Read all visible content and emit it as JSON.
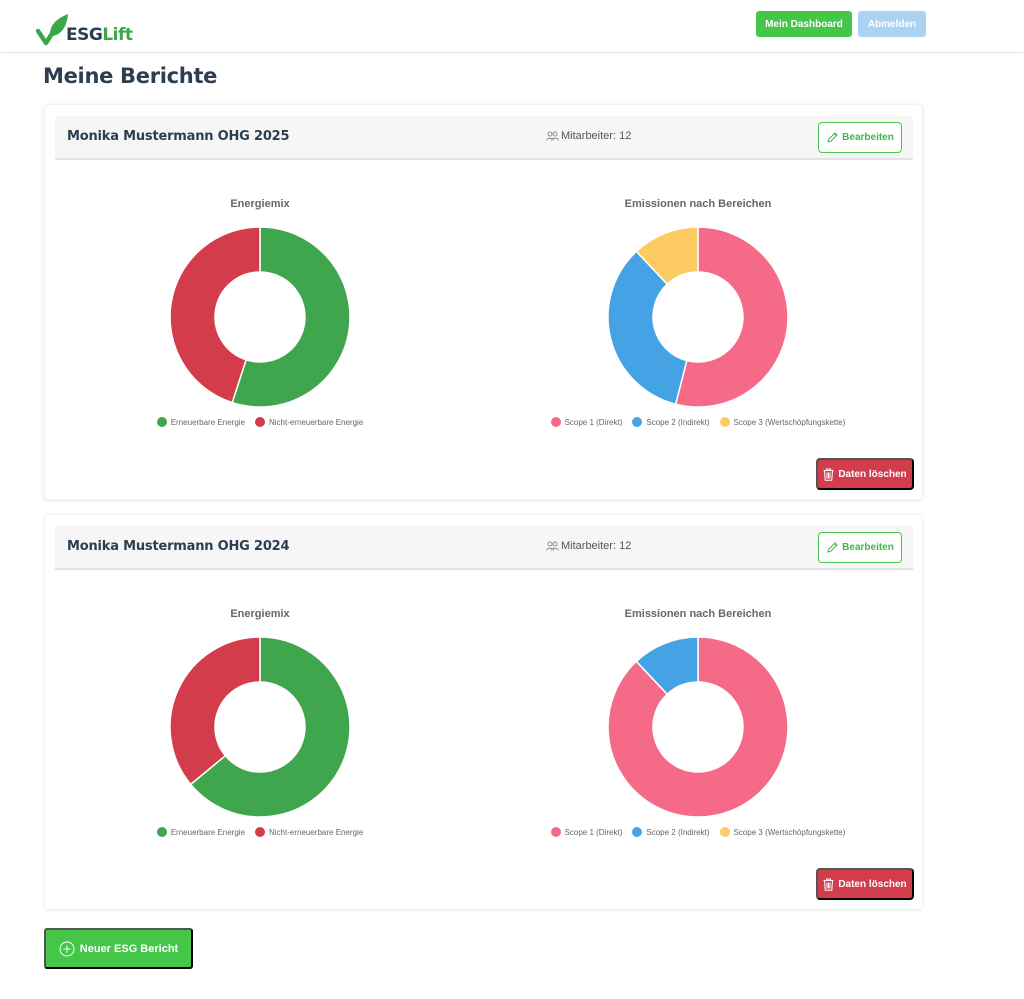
{
  "navbar": {
    "logo": {
      "part1": "ESG",
      "part2": "Lift",
      "icon": "leaf-check-icon"
    },
    "dashboard_label": "Mein Dashboard",
    "logout_label": "Abmelden"
  },
  "page": {
    "title": "Meine Berichte"
  },
  "colors": {
    "brand_green": "#44c649",
    "renewable": "#3fa64d",
    "non_renewable": "#d23c4b",
    "scope1": "#f56a87",
    "scope2": "#45a3e5",
    "scope3": "#fccb62",
    "delete": "#d23c4b"
  },
  "reports": [
    {
      "title": "Monika Mustermann OHG 2025",
      "employees_label": "Mitarbeiter: 12",
      "edit_label": "Bearbeiten",
      "delete_label": "Daten löschen",
      "energy_title": "Energiemix",
      "emissions_title": "Emissionen nach Bereichen"
    },
    {
      "title": "Monika Mustermann OHG 2024",
      "employees_label": "Mitarbeiter: 12",
      "edit_label": "Bearbeiten",
      "delete_label": "Daten löschen",
      "energy_title": "Energiemix",
      "emissions_title": "Emissionen nach Bereichen"
    }
  ],
  "legends": {
    "energy": [
      "Erneuerbare Energie",
      "Nicht-erneuerbare Energie"
    ],
    "emissions": [
      "Scope 1 (Direkt)",
      "Scope 2 (Indirekt)",
      "Scope 3 (Wertschöpfungskette)"
    ]
  },
  "new_report_label": "Neuer ESG Bericht",
  "chart_data": [
    {
      "type": "pie",
      "title": "Energiemix",
      "report": "Monika Mustermann OHG 2025",
      "categories": [
        "Erneuerbare Energie",
        "Nicht-erneuerbare Energie"
      ],
      "values": [
        55,
        45
      ],
      "colors": [
        "#3fa64d",
        "#d23c4b"
      ],
      "donut": true,
      "legend_position": "bottom"
    },
    {
      "type": "pie",
      "title": "Emissionen nach Bereichen",
      "report": "Monika Mustermann OHG 2025",
      "categories": [
        "Scope 1 (Direkt)",
        "Scope 2 (Indirekt)",
        "Scope 3 (Wertschöpfungskette)"
      ],
      "values": [
        54,
        34,
        12
      ],
      "colors": [
        "#f56a87",
        "#45a3e5",
        "#fccb62"
      ],
      "donut": true,
      "legend_position": "bottom"
    },
    {
      "type": "pie",
      "title": "Energiemix",
      "report": "Monika Mustermann OHG 2024",
      "categories": [
        "Erneuerbare Energie",
        "Nicht-erneuerbare Energie"
      ],
      "values": [
        64,
        36
      ],
      "colors": [
        "#3fa64d",
        "#d23c4b"
      ],
      "donut": true,
      "legend_position": "bottom"
    },
    {
      "type": "pie",
      "title": "Emissionen nach Bereichen",
      "report": "Monika Mustermann OHG 2024",
      "categories": [
        "Scope 1 (Direkt)",
        "Scope 2 (Indirekt)",
        "Scope 3 (Wertschöpfungskette)"
      ],
      "values": [
        88,
        12,
        0
      ],
      "colors": [
        "#f56a87",
        "#45a3e5",
        "#fccb62"
      ],
      "donut": true,
      "legend_position": "bottom"
    }
  ]
}
